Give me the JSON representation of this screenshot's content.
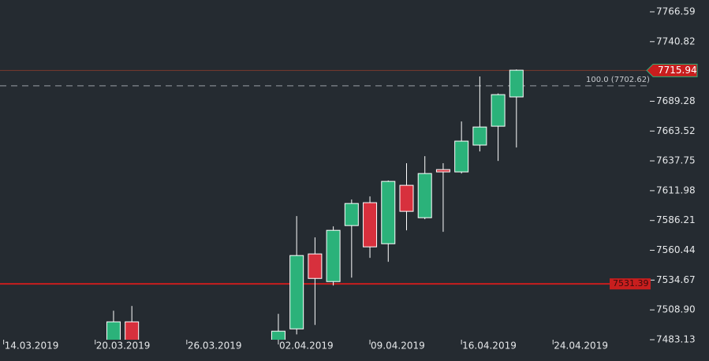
{
  "chart_data": {
    "type": "candlestick",
    "x": [
      6,
      7,
      15,
      16,
      17,
      18,
      19,
      20,
      21,
      22,
      23,
      24,
      25,
      26,
      27,
      28
    ],
    "open": [
      7478,
      7498.6,
      7478,
      7492.5,
      7557.3,
      7533.4,
      7581.8,
      7601.6,
      7566.1,
      7616.6,
      7588.6,
      7630.2,
      7628.2,
      7651.4,
      7667.7,
      7693.0
    ],
    "high": [
      7508.2,
      7512.3,
      7505.5,
      7590,
      7571.6,
      7581.1,
      7604.3,
      7607.0,
      7620.8,
      7635.7,
      7641.8,
      7635.7,
      7671.8,
      7710.7,
      7696,
      7716.8
    ],
    "low": [
      7475,
      7475,
      7476,
      7487.7,
      7495.9,
      7530,
      7536.8,
      7553.9,
      7550.5,
      7577.7,
      7587.3,
      7576.4,
      7626.8,
      7645.9,
      7637.7,
      7649.3
    ],
    "close": [
      7498.6,
      7478,
      7490.5,
      7555.9,
      7536.1,
      7577.7,
      7600.9,
      7563.4,
      7620.0,
      7594.1,
      7626.8,
      7628.2,
      7654.8,
      7667.0,
      7695.0,
      7716.1
    ],
    "up_color": "#2bb27a",
    "down_color": "#d7303d",
    "xlim": [
      -0.2,
      35.2
    ],
    "xticks": [
      {
        "value": 0,
        "label": "14.03.2019"
      },
      {
        "value": 5,
        "label": "20.03.2019"
      },
      {
        "value": 10,
        "label": "26.03.2019"
      },
      {
        "value": 15,
        "label": "02.04.2019"
      },
      {
        "value": 20,
        "label": "09.04.2019"
      },
      {
        "value": 25,
        "label": "16.04.2019"
      },
      {
        "value": 30,
        "label": "24.04.2019"
      }
    ],
    "ylim": [
      7483.13,
      7776.8
    ],
    "yticks": [
      7766.59,
      7740.82,
      7689.28,
      7663.52,
      7637.75,
      7611.98,
      7586.21,
      7560.44,
      7534.67,
      {
        "value": 7508.9,
        "label": "7508.90"
      },
      7483.13
    ],
    "current_price": 7715.94,
    "support_level": 7531.39,
    "fib_level": {
      "name": "100.0 (7702.62)",
      "value": 7702.62
    }
  }
}
